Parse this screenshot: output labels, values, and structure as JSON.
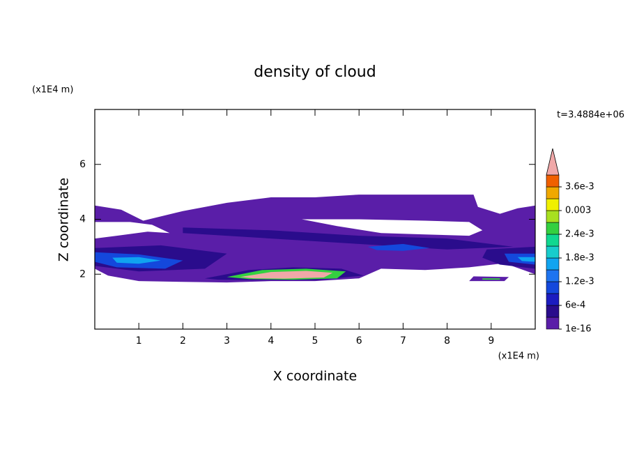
{
  "chart_data": {
    "type": "contour",
    "title": "density of cloud",
    "x_label": "X coordinate",
    "y_label": "Z coordinate",
    "x_unit": "(x1E4 m)",
    "y_unit": "(x1E4 m)",
    "time_label": "t=3.4884e+06",
    "xlim": [
      0,
      10
    ],
    "ylim": [
      0,
      8
    ],
    "xticks": [
      1,
      2,
      3,
      4,
      5,
      6,
      7,
      8,
      9
    ],
    "yticks": [
      2,
      4,
      6
    ],
    "levels": [
      1e-16,
      0.0003,
      0.0006,
      0.0009,
      0.0012,
      0.0015,
      0.0018,
      0.0021,
      0.0024,
      0.0027,
      0.003,
      0.0033,
      0.0036,
      0.0039
    ],
    "level_colors": [
      "#5a1ea8",
      "#2a0c8c",
      "#1c1cc0",
      "#1448dc",
      "#1e74f0",
      "#10a4f0",
      "#18cccc",
      "#10d890",
      "#34d040",
      "#a8e020",
      "#f0f000",
      "#f0a800",
      "#f06000",
      "#e82010"
    ],
    "overflow_color": "#f0a8a8",
    "colorbar_ticks": [
      {
        "value": 1e-16,
        "label": "1e-16"
      },
      {
        "value": 0.0006,
        "label": "6e-4"
      },
      {
        "value": 0.0012,
        "label": "1.2e-3"
      },
      {
        "value": 0.0018,
        "label": "1.8e-3"
      },
      {
        "value": 0.0024,
        "label": "2.4e-3"
      },
      0.003,
      {
        "value": 0.0036,
        "label": "3.6e-3"
      }
    ],
    "regions": [
      {
        "value": 1e-16,
        "rings": [
          [
            [
              0,
              4.5
            ],
            [
              0.6,
              4.35
            ],
            [
              1.1,
              3.95
            ],
            [
              2.0,
              4.3
            ],
            [
              3.0,
              4.6
            ],
            [
              4.0,
              4.8
            ],
            [
              5.0,
              4.8
            ],
            [
              6.0,
              4.9
            ],
            [
              7.0,
              4.9
            ],
            [
              8.6,
              4.9
            ],
            [
              8.7,
              4.45
            ],
            [
              9.2,
              4.2
            ],
            [
              9.6,
              4.4
            ],
            [
              10,
              4.5
            ],
            [
              10,
              2.0
            ],
            [
              9.3,
              2.4
            ],
            [
              8.5,
              2.25
            ],
            [
              7.5,
              2.15
            ],
            [
              6.5,
              2.2
            ],
            [
              6.0,
              1.85
            ],
            [
              5.0,
              1.75
            ],
            [
              4.0,
              1.75
            ],
            [
              3.0,
              1.7
            ],
            [
              2.0,
              1.72
            ],
            [
              1.0,
              1.75
            ],
            [
              0.3,
              1.95
            ],
            [
              0,
              2.2
            ]
          ],
          [
            [
              0,
              3.3
            ],
            [
              0.5,
              3.4
            ],
            [
              1.2,
              3.55
            ],
            [
              1.7,
              3.5
            ],
            [
              1.3,
              3.8
            ],
            [
              0.8,
              3.9
            ],
            [
              0,
              3.9
            ]
          ],
          [
            [
              4.7,
              4.0
            ],
            [
              5.5,
              3.75
            ],
            [
              6.5,
              3.5
            ],
            [
              7.5,
              3.45
            ],
            [
              8.5,
              3.4
            ],
            [
              8.8,
              3.6
            ],
            [
              8.5,
              3.9
            ],
            [
              7.5,
              3.95
            ],
            [
              6.0,
              4.0
            ]
          ]
        ]
      },
      {
        "value": 1e-16,
        "rings": [
          [
            [
              8.5,
              1.75
            ],
            [
              9.3,
              1.75
            ],
            [
              9.4,
              1.9
            ],
            [
              8.6,
              1.92
            ]
          ]
        ]
      },
      {
        "value": 0.0003,
        "rings": [
          [
            [
              0,
              2.95
            ],
            [
              1.5,
              3.05
            ],
            [
              3.0,
              2.75
            ],
            [
              2.5,
              2.2
            ],
            [
              1.0,
              2.1
            ],
            [
              0,
              2.3
            ]
          ]
        ]
      },
      {
        "value": 0.0003,
        "rings": [
          [
            [
              2.0,
              3.7
            ],
            [
              4.0,
              3.6
            ],
            [
              6.0,
              3.4
            ],
            [
              8.0,
              3.3
            ],
            [
              9.5,
              3.0
            ],
            [
              8.0,
              2.9
            ],
            [
              6.0,
              3.1
            ],
            [
              4.0,
              3.3
            ],
            [
              2.0,
              3.5
            ]
          ]
        ]
      },
      {
        "value": 0.0003,
        "rings": [
          [
            [
              2.5,
              1.85
            ],
            [
              3.5,
              2.15
            ],
            [
              4.5,
              2.25
            ],
            [
              5.6,
              2.2
            ],
            [
              6.1,
              1.95
            ],
            [
              5.0,
              1.78
            ],
            [
              3.8,
              1.78
            ],
            [
              2.8,
              1.8
            ]
          ]
        ]
      },
      {
        "value": 0.0003,
        "rings": [
          [
            [
              8.9,
              2.9
            ],
            [
              10,
              3.0
            ],
            [
              10,
              2.2
            ],
            [
              9.2,
              2.35
            ],
            [
              8.8,
              2.6
            ]
          ]
        ]
      },
      {
        "value": 0.0009,
        "rings": [
          [
            [
              0,
              2.8
            ],
            [
              1.0,
              2.72
            ],
            [
              2.0,
              2.5
            ],
            [
              1.6,
              2.2
            ],
            [
              0.5,
              2.25
            ],
            [
              0,
              2.45
            ]
          ]
        ]
      },
      {
        "value": 0.0009,
        "rings": [
          [
            [
              6.2,
              3.0
            ],
            [
              7.0,
              3.1
            ],
            [
              7.6,
              2.95
            ],
            [
              7.0,
              2.85
            ],
            [
              6.4,
              2.88
            ]
          ]
        ]
      },
      {
        "value": 0.0009,
        "rings": [
          [
            [
              9.3,
              2.75
            ],
            [
              10,
              2.75
            ],
            [
              10,
              2.35
            ],
            [
              9.4,
              2.45
            ]
          ]
        ]
      },
      {
        "value": 0.0015,
        "rings": [
          [
            [
              0.4,
              2.6
            ],
            [
              1.0,
              2.62
            ],
            [
              1.5,
              2.5
            ],
            [
              1.0,
              2.38
            ],
            [
              0.5,
              2.42
            ]
          ]
        ]
      },
      {
        "value": 0.0015,
        "rings": [
          [
            [
              9.6,
              2.62
            ],
            [
              10,
              2.62
            ],
            [
              10,
              2.45
            ],
            [
              9.7,
              2.48
            ]
          ]
        ]
      },
      {
        "value": 0.0024,
        "rings": [
          [
            [
              3.0,
              1.9
            ],
            [
              3.8,
              2.15
            ],
            [
              4.8,
              2.2
            ],
            [
              5.7,
              2.1
            ],
            [
              5.5,
              1.85
            ],
            [
              4.5,
              1.8
            ],
            [
              3.5,
              1.82
            ]
          ]
        ]
      },
      {
        "value": 0.0024,
        "rings": [
          [
            [
              8.8,
              1.85
            ],
            [
              9.2,
              1.85
            ],
            [
              9.2,
              1.8
            ],
            [
              8.8,
              1.8
            ]
          ]
        ]
      },
      {
        "value": 0.0039,
        "rings": [
          [
            [
              3.3,
              1.9
            ],
            [
              4.0,
              2.08
            ],
            [
              4.8,
              2.12
            ],
            [
              5.4,
              2.05
            ],
            [
              5.2,
              1.88
            ],
            [
              4.3,
              1.84
            ],
            [
              3.6,
              1.85
            ]
          ]
        ]
      }
    ]
  }
}
